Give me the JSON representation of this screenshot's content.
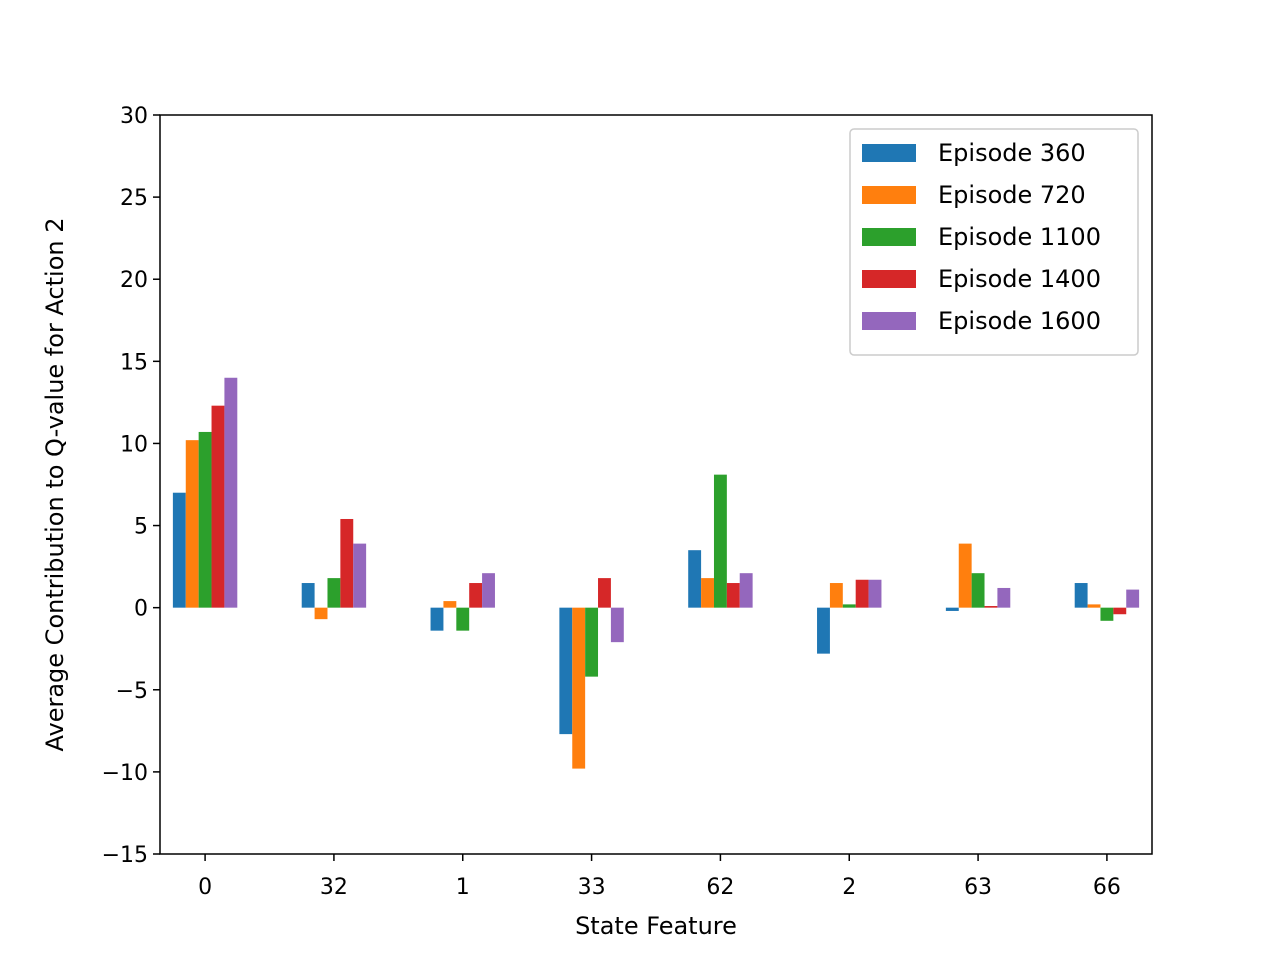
{
  "chart_data": {
    "type": "bar",
    "xlabel": "State Feature",
    "ylabel": "Average Contribution to Q-value for Action 2",
    "categories": [
      "0",
      "32",
      "1",
      "33",
      "62",
      "2",
      "63",
      "66"
    ],
    "ylim": [
      -15,
      30
    ],
    "yticks": [
      -15,
      -10,
      -5,
      0,
      5,
      10,
      15,
      20,
      25,
      30
    ],
    "ytick_labels": [
      "−15",
      "−10",
      "−5",
      "0",
      "5",
      "10",
      "15",
      "20",
      "25",
      "30"
    ],
    "grid": false,
    "legend_position": "top-right",
    "series": [
      {
        "name": "Episode 360",
        "color": "#1f77b4",
        "values": [
          7.0,
          1.5,
          -1.4,
          -7.7,
          3.5,
          -2.8,
          -0.2,
          1.5
        ]
      },
      {
        "name": "Episode 720",
        "color": "#ff7f0e",
        "values": [
          10.2,
          -0.7,
          0.4,
          -9.8,
          1.8,
          1.5,
          3.9,
          0.2
        ]
      },
      {
        "name": "Episode 1100",
        "color": "#2ca02c",
        "values": [
          10.7,
          1.8,
          -1.4,
          -4.2,
          8.1,
          0.2,
          2.1,
          -0.8
        ]
      },
      {
        "name": "Episode 1400",
        "color": "#d62728",
        "values": [
          12.3,
          5.4,
          1.5,
          1.8,
          1.5,
          1.7,
          0.1,
          -0.4
        ]
      },
      {
        "name": "Episode 1600",
        "color": "#9467bd",
        "values": [
          14.0,
          3.9,
          2.1,
          -2.1,
          2.1,
          1.7,
          1.2,
          1.1
        ]
      }
    ]
  }
}
